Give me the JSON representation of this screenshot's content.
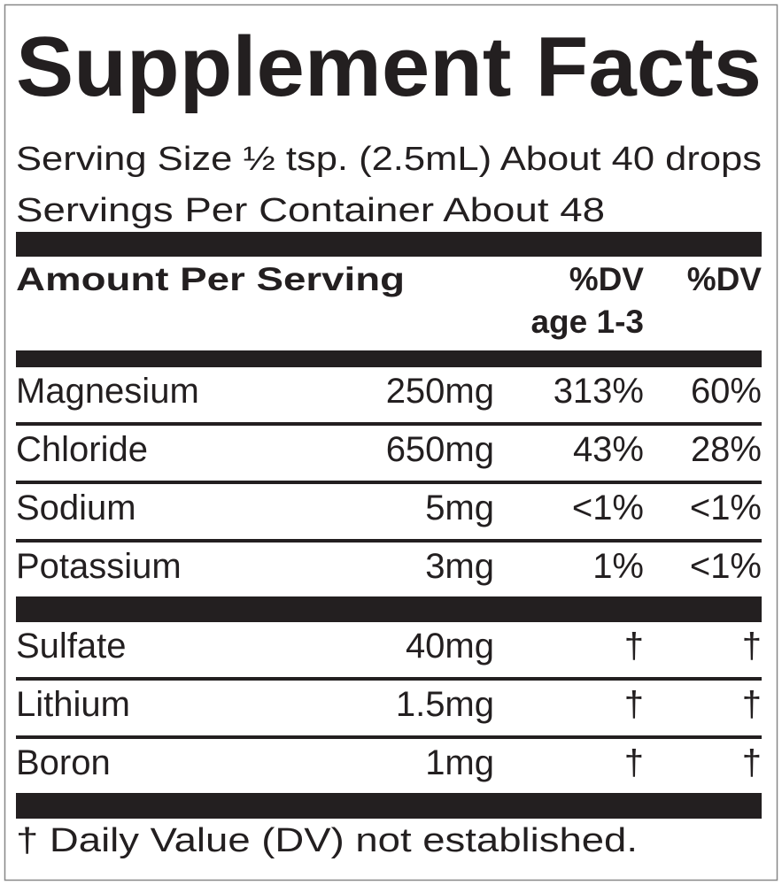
{
  "title": "Supplement Facts",
  "serving_size": "Serving Size ½ tsp. (2.5mL) About 40 drops",
  "servings_per_container": "Servings Per Container About 48",
  "header": {
    "amount": "Amount Per Serving",
    "dv_child": "%DV",
    "dv_child_age": "age 1-3",
    "dv": "%DV"
  },
  "groups": [
    [
      {
        "name": "Magnesium",
        "amount": "250mg",
        "dv_child": "313%",
        "dv": "60%"
      },
      {
        "name": "Chloride",
        "amount": "650mg",
        "dv_child": "43%",
        "dv": "28%"
      },
      {
        "name": "Sodium",
        "amount": "5mg",
        "dv_child": "<1%",
        "dv": "<1%"
      },
      {
        "name": "Potassium",
        "amount": "3mg",
        "dv_child": "1%",
        "dv": "<1%"
      }
    ],
    [
      {
        "name": "Sulfate",
        "amount": "40mg",
        "dv_child": "†",
        "dv": "†"
      },
      {
        "name": "Lithium",
        "amount": "1.5mg",
        "dv_child": "†",
        "dv": "†"
      },
      {
        "name": "Boron",
        "amount": "1mg",
        "dv_child": "†",
        "dv": "†"
      }
    ]
  ],
  "footnote": "† Daily Value (DV) not established."
}
